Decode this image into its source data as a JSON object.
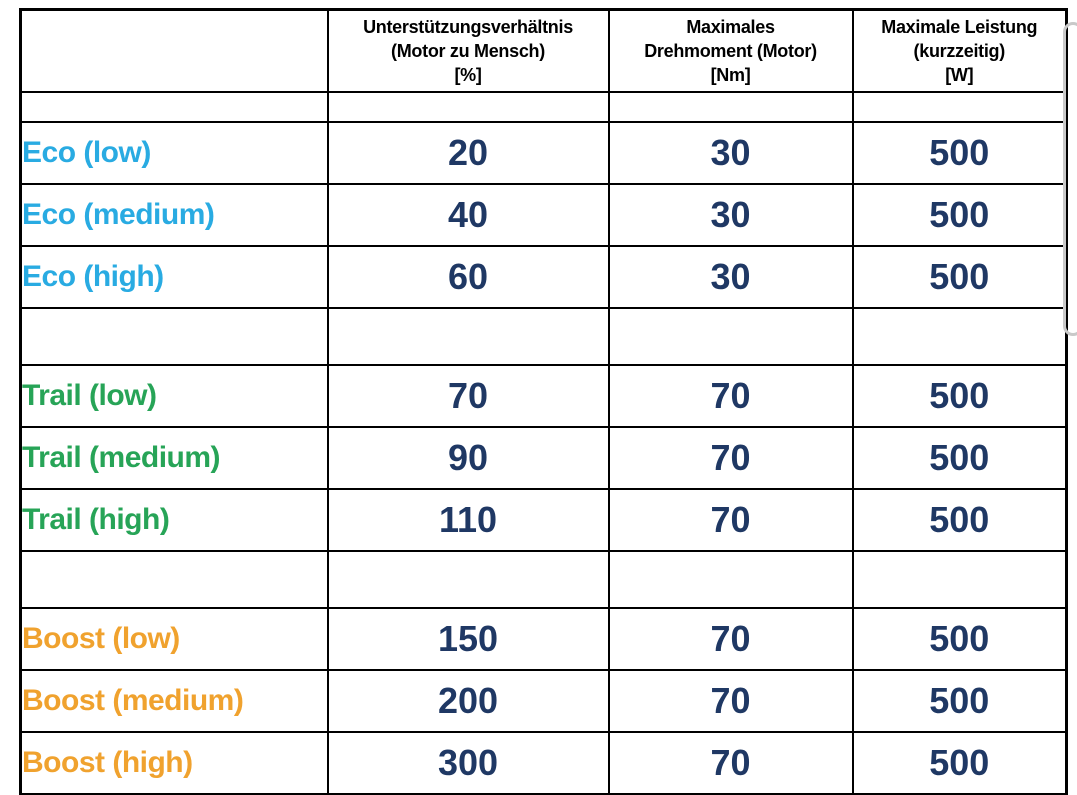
{
  "colors": {
    "eco": "#29abe2",
    "trail": "#27a457",
    "boost": "#f0a22e",
    "value": "#1f3864",
    "header_text": "#000000",
    "border": "#000000",
    "scrollbar": "#c9c9c9"
  },
  "table": {
    "headers": [
      {
        "text": ""
      },
      {
        "text": "Unterstützungsverhältnis\n(Motor zu Mensch)\n[%]"
      },
      {
        "text": "Maximales\nDrehmoment (Motor)\n[Nm]"
      },
      {
        "text": "Maximale Leistung\n(kurzzeitig)\n[W]"
      }
    ],
    "rows": [
      {
        "type": "spacer",
        "size": "small"
      },
      {
        "type": "data",
        "group": "eco",
        "label": "Eco (low)",
        "values": [
          "20",
          "30",
          "500"
        ]
      },
      {
        "type": "data",
        "group": "eco",
        "label": "Eco (medium)",
        "values": [
          "40",
          "30",
          "500"
        ]
      },
      {
        "type": "data",
        "group": "eco",
        "label": "Eco (high)",
        "values": [
          "60",
          "30",
          "500"
        ]
      },
      {
        "type": "spacer",
        "size": "large"
      },
      {
        "type": "data",
        "group": "trail",
        "label": "Trail (low)",
        "values": [
          "70",
          "70",
          "500"
        ]
      },
      {
        "type": "data",
        "group": "trail",
        "label": "Trail (medium)",
        "values": [
          "90",
          "70",
          "500"
        ]
      },
      {
        "type": "data",
        "group": "trail",
        "label": "Trail (high)",
        "values": [
          "110",
          "70",
          "500"
        ]
      },
      {
        "type": "spacer",
        "size": "large"
      },
      {
        "type": "data",
        "group": "boost",
        "label": "Boost (low)",
        "values": [
          "150",
          "70",
          "500"
        ]
      },
      {
        "type": "data",
        "group": "boost",
        "label": "Boost (medium)",
        "values": [
          "200",
          "70",
          "500"
        ]
      },
      {
        "type": "data",
        "group": "boost",
        "label": "Boost (high)",
        "values": [
          "300",
          "70",
          "500"
        ]
      }
    ]
  }
}
